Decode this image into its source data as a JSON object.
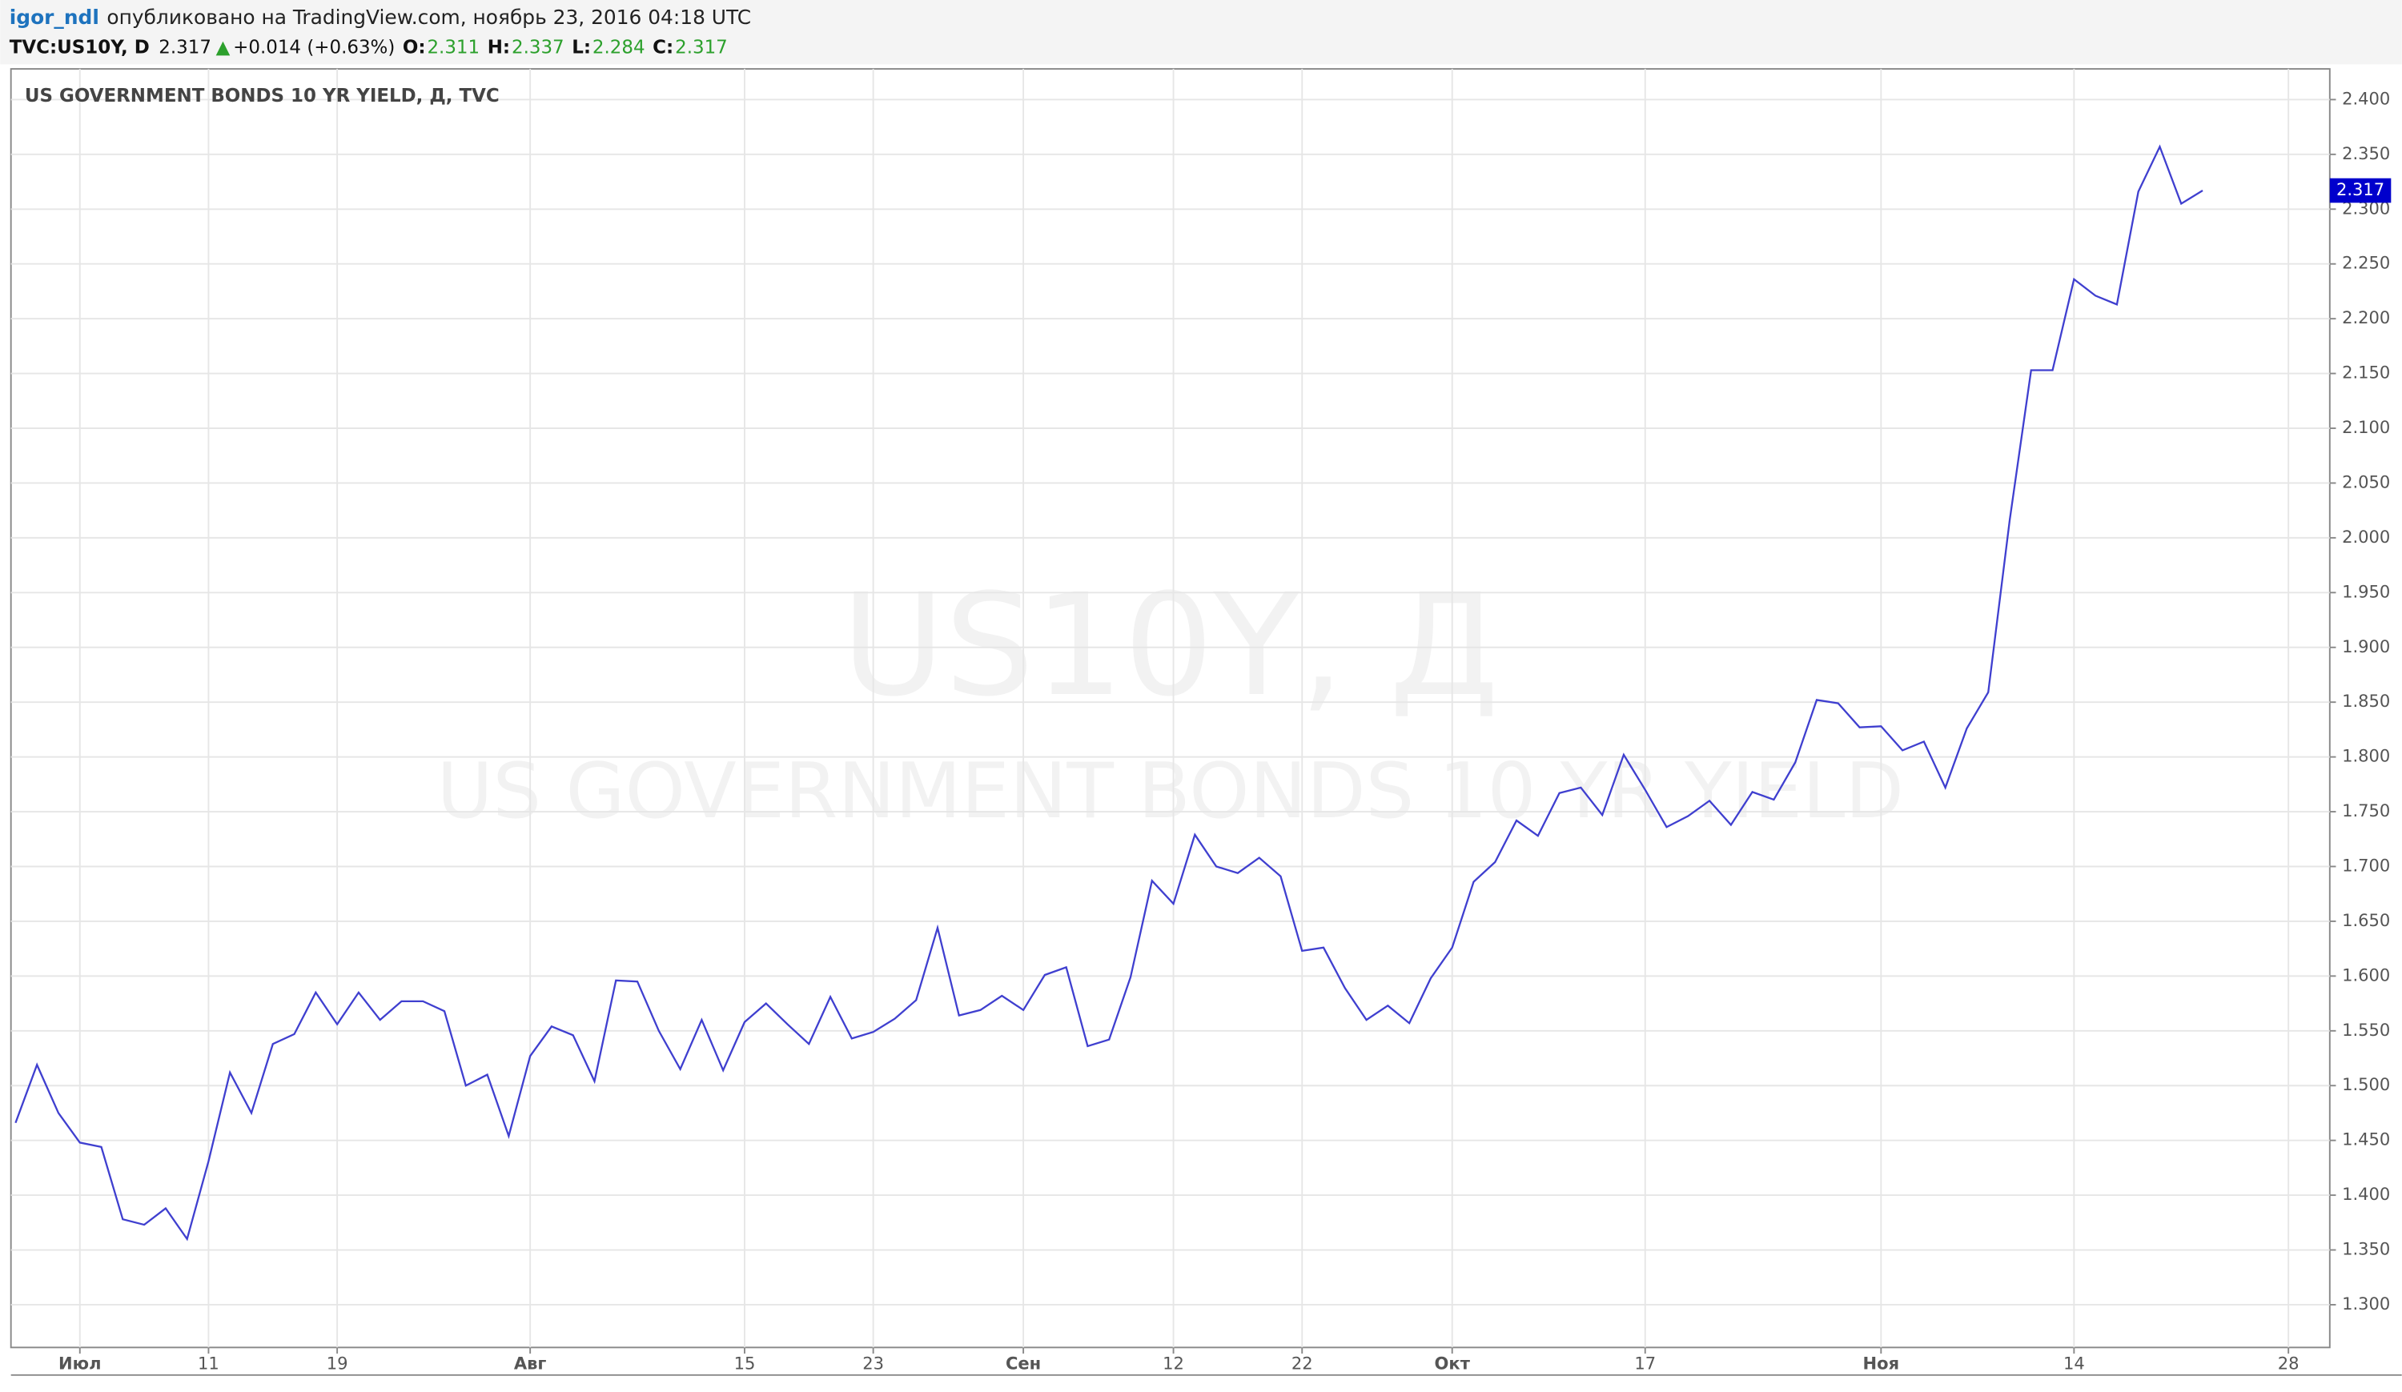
{
  "header": {
    "author": "igor_ndl",
    "published": "опубликовано на TradingView.com, ноябрь 23, 2016 04:18 UTC",
    "symbol": "TVC:US10Y, D",
    "last": "2.317",
    "arrow": "▲",
    "change": "+0.014 (+0.63%)",
    "ohlc": [
      [
        "O:",
        "2.311"
      ],
      [
        "H:",
        "2.337"
      ],
      [
        "L:",
        "2.284"
      ],
      [
        "C:",
        "2.317"
      ]
    ]
  },
  "chart_data": {
    "type": "line",
    "title": "US GOVERNMENT BONDS 10 YR YIELD, Д, TVC",
    "watermark": [
      "US10Y, Д",
      "US GOVERNMENT BONDS 10 YR YIELD"
    ],
    "categories": [
      null,
      null,
      null,
      "Июл",
      null,
      null,
      null,
      null,
      null,
      "11",
      null,
      null,
      null,
      null,
      null,
      "19",
      null,
      null,
      null,
      null,
      null,
      null,
      null,
      null,
      "Авг",
      null,
      null,
      null,
      null,
      null,
      null,
      null,
      null,
      null,
      "15",
      null,
      null,
      null,
      null,
      null,
      "23",
      null,
      null,
      null,
      null,
      null,
      null,
      "Сен",
      null,
      null,
      null,
      null,
      null,
      null,
      "12",
      null,
      null,
      null,
      null,
      null,
      "22",
      null,
      null,
      null,
      null,
      null,
      null,
      "Окт",
      null,
      null,
      null,
      null,
      null,
      null,
      null,
      null,
      "17",
      null,
      null,
      null,
      null,
      null,
      null,
      null,
      null,
      null,
      null,
      "Ноя",
      null,
      null,
      null,
      null,
      null,
      null,
      null,
      null,
      "14",
      null,
      null,
      null,
      null,
      null,
      null,
      null,
      null,
      null,
      "28"
    ],
    "series": [
      {
        "name": "US10Y",
        "color": "#3f3fcf",
        "values": [
          1.466,
          1.519,
          1.475,
          1.448,
          1.444,
          1.378,
          1.373,
          1.388,
          1.36,
          1.431,
          1.512,
          1.475,
          1.538,
          1.547,
          1.585,
          1.556,
          1.585,
          1.56,
          1.577,
          1.577,
          1.568,
          1.5,
          1.51,
          1.454,
          1.527,
          1.554,
          1.546,
          1.504,
          1.596,
          1.595,
          1.55,
          1.515,
          1.56,
          1.514,
          1.558,
          1.575,
          1.556,
          1.538,
          1.581,
          1.543,
          1.549,
          1.561,
          1.578,
          1.644,
          1.564,
          1.569,
          1.582,
          1.569,
          1.601,
          1.608,
          1.536,
          1.542,
          1.599,
          1.687,
          1.666,
          1.729,
          1.7,
          1.694,
          1.708,
          1.691,
          1.623,
          1.626,
          1.589,
          1.56,
          1.573,
          1.557,
          1.598,
          1.626,
          1.686,
          1.704,
          1.742,
          1.728,
          1.767,
          1.772,
          1.747,
          1.802,
          1.77,
          1.736,
          1.746,
          1.76,
          1.738,
          1.768,
          1.761,
          1.795,
          1.852,
          1.849,
          1.827,
          1.828,
          1.806,
          1.814,
          1.772,
          1.826,
          1.859,
          2.016,
          2.153,
          2.153,
          2.236,
          2.221,
          2.213,
          2.316,
          2.357,
          2.305,
          2.317,
          null,
          null,
          null,
          null
        ]
      }
    ],
    "ylim": [
      1.261,
      2.428
    ],
    "yticks": [
      {
        "value": 1.3,
        "label": "1.300"
      },
      {
        "value": 1.35,
        "label": "1.350"
      },
      {
        "value": 1.4,
        "label": "1.400"
      },
      {
        "value": 1.45,
        "label": "1.450"
      },
      {
        "value": 1.5,
        "label": "1.500"
      },
      {
        "value": 1.55,
        "label": "1.550"
      },
      {
        "value": 1.6,
        "label": "1.600"
      },
      {
        "value": 1.65,
        "label": "1.650"
      },
      {
        "value": 1.7,
        "label": "1.700"
      },
      {
        "value": 1.75,
        "label": "1.750"
      },
      {
        "value": 1.8,
        "label": "1.800"
      },
      {
        "value": 1.85,
        "label": "1.850"
      },
      {
        "value": 1.9,
        "label": "1.900"
      },
      {
        "value": 1.95,
        "label": "1.950"
      },
      {
        "value": 2.0,
        "label": "2.000"
      },
      {
        "value": 2.05,
        "label": "2.050"
      },
      {
        "value": 2.1,
        "label": "2.100"
      },
      {
        "value": 2.15,
        "label": "2.150"
      },
      {
        "value": 2.2,
        "label": "2.200"
      },
      {
        "value": 2.25,
        "label": "2.250"
      },
      {
        "value": 2.3,
        "label": "2.300"
      },
      {
        "value": 2.35,
        "label": "2.350"
      },
      {
        "value": 2.4,
        "label": "2.400"
      }
    ],
    "grid": true
  }
}
